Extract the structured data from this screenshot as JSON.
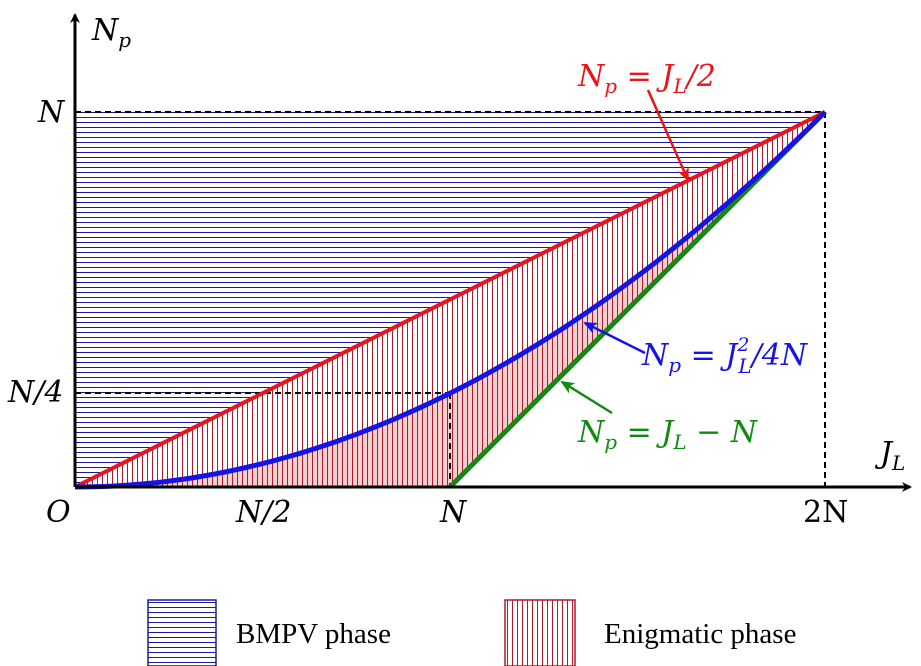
{
  "axes": {
    "x_axis_label": {
      "main": "J",
      "sub": "L"
    },
    "y_axis_label": {
      "main": "N",
      "sub": "p"
    },
    "origin_label": "O",
    "x_ticks": [
      "N/2",
      "N",
      "2N"
    ],
    "y_ticks": [
      "N",
      "N/4"
    ]
  },
  "curves": {
    "half_line": {
      "lhs_main": "N",
      "lhs_sub": "p",
      "rhs": " = J",
      "rhs_sub": "L",
      "rhs_tail": "/2",
      "color": "#e8141e"
    },
    "parabola": {
      "lhs_main": "N",
      "lhs_sub": "p",
      "rhs": " = J",
      "rhs_sup": "2",
      "rhs_sub": "L",
      "rhs_tail": "/4N",
      "color": "#1414e6"
    },
    "shift_line": {
      "lhs_main": "N",
      "lhs_sub": "p",
      "rhs": " = J",
      "rhs_sub": "L",
      "rhs_tail": " − N",
      "color": "#128a12"
    }
  },
  "legend": {
    "bmpv": {
      "label": "BMPV phase",
      "color": "#1a1aa0"
    },
    "enigmatic": {
      "label": "Enigmatic phase",
      "color": "#b01a2a"
    }
  },
  "colors": {
    "fill_pink": "#f2d0cf",
    "guide": "#000000"
  }
}
